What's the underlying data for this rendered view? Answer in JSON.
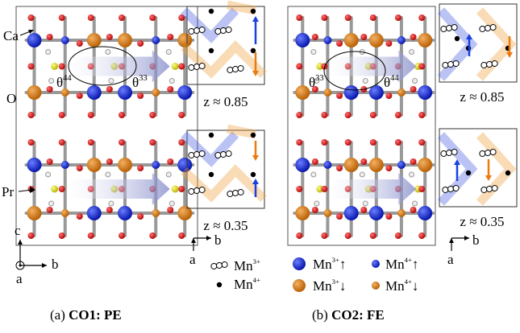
{
  "panel_a": {
    "labels": {
      "ca": "Ca",
      "o": "O",
      "pr": "Pr"
    },
    "angles": [
      {
        "base": "θ",
        "sup": "44"
      },
      {
        "base": "θ",
        "sup": "33"
      }
    ],
    "insets": [
      {
        "z": "z ≈ 0.85"
      },
      {
        "z": "z ≈ 0.35"
      }
    ],
    "axes": {
      "c": "c",
      "b": "b",
      "a": "a"
    },
    "inset_axes": {
      "b": "b",
      "a": "a"
    },
    "legend": [
      {
        "base": "Mn",
        "sup": "3+"
      },
      {
        "base": "Mn",
        "sup": "4+"
      }
    ],
    "caption": {
      "prefix": "(a)",
      "bold": "CO1: PE"
    }
  },
  "panel_b": {
    "angles": [
      {
        "base": "θ",
        "sup": "33"
      },
      {
        "base": "θ",
        "sup": "44"
      }
    ],
    "insets": [
      {
        "z": "z ≈ 0.85"
      },
      {
        "z": "z ≈ 0.35"
      }
    ],
    "inset_axes": {
      "b": "b",
      "a": "a"
    },
    "legend": [
      {
        "base": "Mn",
        "sup": "3+",
        "arrow": "↑"
      },
      {
        "base": "Mn",
        "sup": "4+",
        "arrow": "↑"
      },
      {
        "base": "Mn",
        "sup": "3+",
        "arrow": "↓"
      },
      {
        "base": "Mn",
        "sup": "4+",
        "arrow": "↓"
      }
    ],
    "caption": {
      "prefix": "(b)",
      "bold": "CO2: FE"
    }
  }
}
